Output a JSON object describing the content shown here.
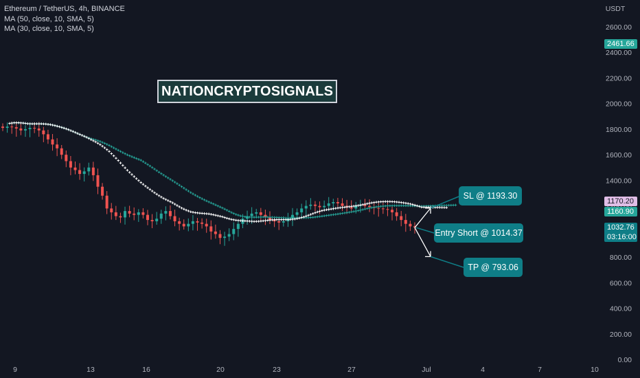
{
  "legend": {
    "symbol": "Ethereum / TetherUS, 4h, BINANCE",
    "ma1": "MA (50, close, 10, SMA, 5)",
    "ma2": "MA (30, close, 10, SMA, 5)"
  },
  "watermark": "NATIONCRYPTOSIGNALS",
  "callouts": {
    "sl": "SL @ 1193.30",
    "entry": "Entry Short @ 1014.37",
    "tp": "TP @ 793.06"
  },
  "price_tags": {
    "top": "2461.66",
    "ma_white": "1170.20",
    "ma_green": "1160.90",
    "last_price": "1032.76",
    "countdown": "03:16:00"
  },
  "colors": {
    "background": "#131722",
    "up": "#26a69a",
    "down": "#ef5350",
    "ma_green": "#26a69a",
    "ma_white": "#ffffff",
    "callout": "#0f7e87",
    "last_price_tag": "#0f7e87",
    "ma_white_tag": "#e1bee7"
  },
  "chart_data": {
    "type": "candlestick",
    "currency_label": "USDT",
    "y_ticks": [
      "2600.00",
      "2400.00",
      "2200.00",
      "2000.00",
      "1800.00",
      "1600.00",
      "1400.00",
      "1200.00",
      "1000.00",
      "800.00",
      "600.00",
      "400.00",
      "200.00",
      "0.00"
    ],
    "ylim": [
      0,
      2700
    ],
    "x_ticks": [
      "9",
      "13",
      "16",
      "20",
      "23",
      "27",
      "Jul",
      "4",
      "7",
      "10"
    ],
    "series": [
      {
        "name": "MA (50, close, 10, SMA, 5)",
        "last_value": 1160.9
      },
      {
        "name": "MA (30, close, 10, SMA, 5)",
        "last_value": 1170.2
      }
    ],
    "candles_close_approx": [
      1810,
      1820,
      1815,
      1805,
      1790,
      1800,
      1810,
      1805,
      1790,
      1760,
      1720,
      1680,
      1650,
      1600,
      1550,
      1500,
      1480,
      1450,
      1470,
      1500,
      1440,
      1350,
      1280,
      1180,
      1150,
      1120,
      1110,
      1160,
      1140,
      1130,
      1150,
      1130,
      1090,
      1080,
      1100,
      1140,
      1160,
      1120,
      1080,
      1060,
      1040,
      1060,
      1080,
      1070,
      1060,
      1040,
      1000,
      980,
      950,
      960,
      980,
      1020,
      1060,
      1100,
      1120,
      1140,
      1150,
      1130,
      1110,
      1090,
      1080,
      1070,
      1080,
      1100,
      1130,
      1150,
      1180,
      1200,
      1210,
      1200,
      1190,
      1200,
      1220,
      1230,
      1220,
      1200,
      1190,
      1180,
      1200,
      1210,
      1200,
      1190,
      1185,
      1180,
      1175,
      1170,
      1150,
      1120,
      1090,
      1060,
      1040,
      1032
    ],
    "levels": {
      "sl": 1193.3,
      "entry": 1014.37,
      "tp": 793.06,
      "last_price": 1032.76
    }
  }
}
